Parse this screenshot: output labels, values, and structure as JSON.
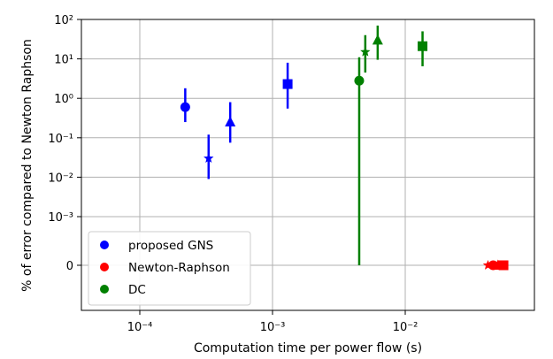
{
  "chart_data": {
    "type": "scatter",
    "title": "",
    "xlabel": "Computation time per power flow (s)",
    "ylabel": "% of error compared to Newton Raphson",
    "x_scale": "log",
    "y_scale": "symlog",
    "xlim": [
      4e-05,
      0.09
    ],
    "ylim_label": "0 to 100 (symlog, zero shown at bottom)",
    "x_ticks": [
      {
        "value": 0.0001,
        "label": "10⁻⁴"
      },
      {
        "value": 0.001,
        "label": "10⁻³"
      },
      {
        "value": 0.01,
        "label": "10⁻²"
      }
    ],
    "y_ticks": [
      {
        "value": 100,
        "label": "10²"
      },
      {
        "value": 10,
        "label": "10¹"
      },
      {
        "value": 1,
        "label": "10⁰"
      },
      {
        "value": 0.1,
        "label": "10⁻¹"
      },
      {
        "value": 0.01,
        "label": "10⁻²"
      },
      {
        "value": 0.001,
        "label": "10⁻³"
      },
      {
        "value": 0,
        "label": "0"
      }
    ],
    "grid": true,
    "legend_position": "bottom-left",
    "series": [
      {
        "name": "proposed GNS",
        "color": "#0000ff",
        "points": [
          {
            "x": 0.00022,
            "y": 0.6,
            "y_low": 0.25,
            "y_high": 1.8,
            "marker": "circle"
          },
          {
            "x": 0.00033,
            "y": 0.03,
            "y_low": 0.009,
            "y_high": 0.12,
            "marker": "star"
          },
          {
            "x": 0.00048,
            "y": 0.25,
            "y_low": 0.075,
            "y_high": 0.8,
            "marker": "triangle"
          },
          {
            "x": 0.0013,
            "y": 2.3,
            "y_low": 0.55,
            "y_high": 8.0,
            "marker": "square"
          }
        ]
      },
      {
        "name": "Newton-Raphson",
        "color": "#ff0000",
        "points": [
          {
            "x": 0.042,
            "y": 0,
            "y_low": 0,
            "y_high": 0,
            "marker": "star"
          },
          {
            "x": 0.046,
            "y": 0,
            "y_low": 0,
            "y_high": 0,
            "marker": "circle"
          },
          {
            "x": 0.05,
            "y": 0,
            "y_low": 0,
            "y_high": 0,
            "marker": "triangle"
          },
          {
            "x": 0.055,
            "y": 0,
            "y_low": 0,
            "y_high": 0,
            "marker": "square"
          }
        ]
      },
      {
        "name": "DC",
        "color": "#008000",
        "points": [
          {
            "x": 0.0045,
            "y": 2.8,
            "y_low": 0,
            "y_high": 11,
            "marker": "circle"
          },
          {
            "x": 0.005,
            "y": 15,
            "y_low": 4.5,
            "y_high": 40,
            "marker": "star"
          },
          {
            "x": 0.0062,
            "y": 30,
            "y_low": 9.5,
            "y_high": 70,
            "marker": "triangle"
          },
          {
            "x": 0.0135,
            "y": 21,
            "y_low": 6.5,
            "y_high": 50,
            "marker": "square"
          }
        ]
      }
    ]
  }
}
